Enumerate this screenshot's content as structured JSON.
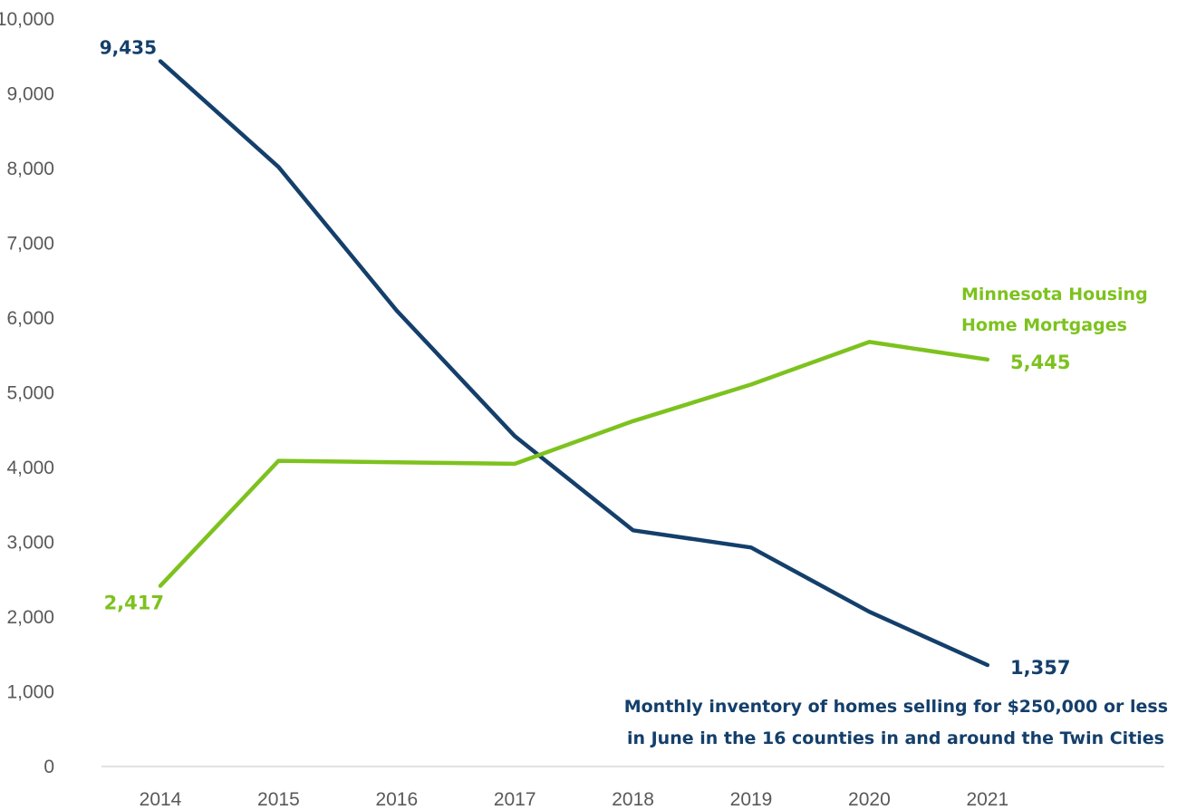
{
  "chart_data": {
    "type": "line",
    "categories": [
      "2014",
      "2015",
      "2016",
      "2017",
      "2018",
      "2019",
      "2020",
      "2021"
    ],
    "ylim": [
      0,
      10000
    ],
    "yticks": [
      "0",
      "1,000",
      "2,000",
      "3,000",
      "4,000",
      "5,000",
      "6,000",
      "7,000",
      "8,000",
      "9,000",
      "10,000"
    ],
    "grid": false,
    "legend": "none",
    "series": [
      {
        "name_lines": [
          "Monthly inventory of homes selling for $250,000 or less",
          "in June in the 16 counties in and around the Twin Cities"
        ],
        "color": "#143f6b",
        "values": [
          9435,
          8020,
          6100,
          4420,
          3160,
          2930,
          2070,
          1357
        ],
        "start_label": "9,435",
        "end_label": "1,357"
      },
      {
        "name_lines": [
          "Minnesota Housing",
          "Home Mortgages"
        ],
        "color": "#7dc21e",
        "values": [
          2417,
          4090,
          4070,
          4050,
          4620,
          5110,
          5680,
          5445
        ],
        "start_label": "2,417",
        "end_label": "5,445"
      }
    ]
  }
}
